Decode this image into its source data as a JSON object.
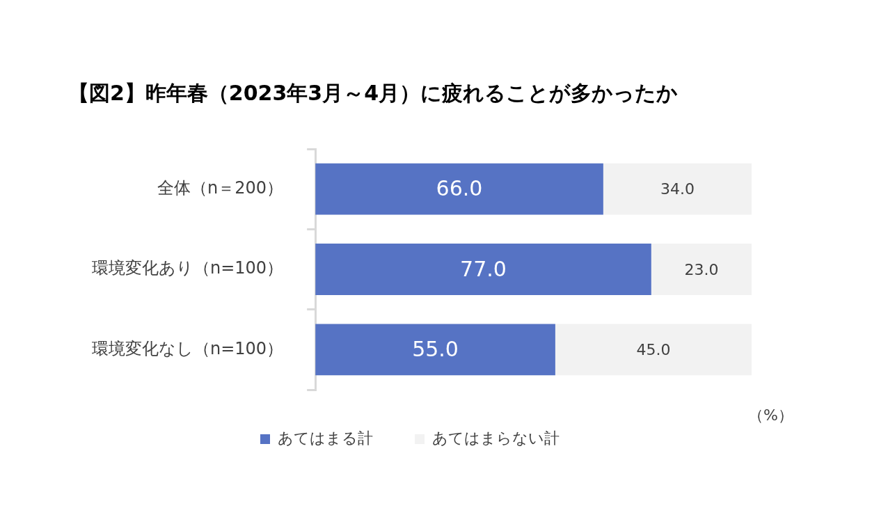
{
  "chart_data": {
    "type": "bar",
    "orientation": "horizontal",
    "stacked": true,
    "title": "【図2】昨年春（2023年3月～4月）に疲れることが多かったか",
    "categories": [
      "全体（n＝200）",
      "環境変化あり（n=100）",
      "環境変化なし（n=100）"
    ],
    "series": [
      {
        "name": "あてはまる計",
        "color": "#5673c4",
        "values": [
          66.0,
          77.0,
          55.0
        ],
        "value_labels": [
          "66.0",
          "77.0",
          "55.0"
        ]
      },
      {
        "name": "あてはまらない計",
        "color": "#f2f2f2",
        "values": [
          34.0,
          23.0,
          45.0
        ],
        "value_labels": [
          "34.0",
          "23.0",
          "45.0"
        ]
      }
    ],
    "tick_labels": "y",
    "legend": "bottom",
    "grid": false,
    "annotations": [
      "（%）"
    ]
  }
}
